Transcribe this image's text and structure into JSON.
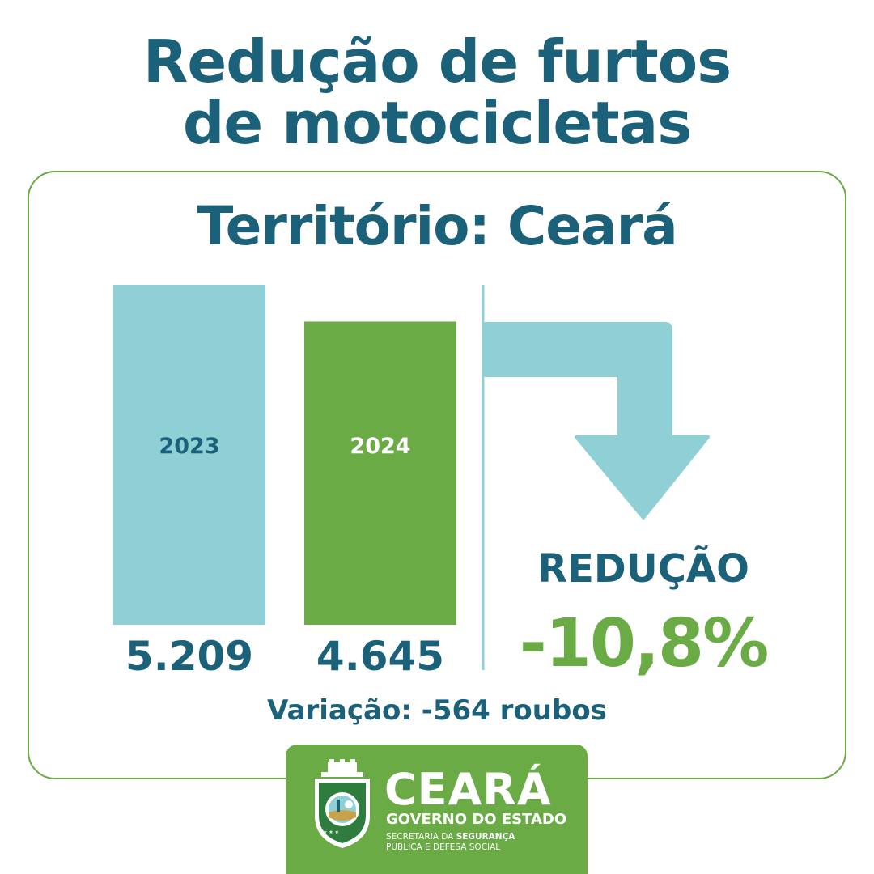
{
  "title_line1": "Redução de furtos",
  "title_line2": "de motocicletas",
  "territory": "Território: Ceará",
  "chart_data": {
    "type": "bar",
    "categories": [
      "2023",
      "2024"
    ],
    "values": [
      5209,
      4645
    ],
    "value_labels": [
      "5.209",
      "4.645"
    ],
    "colors": [
      "#8fd0d6",
      "#6aab45"
    ],
    "category_label_colors": [
      "#1b6179",
      "#ffffff"
    ]
  },
  "reduction": {
    "label": "REDUÇÃO",
    "value": "-10,8%"
  },
  "variation": "Variação: -564 roubos",
  "logo": {
    "name": "CEARÁ",
    "government": "GOVERNO DO ESTADO",
    "secretariat_prefix": "SECRETARIA DA",
    "secretariat_bold": "SEGURANÇA",
    "secretariat_line2": "PÚBLICA E DEFESA SOCIAL"
  },
  "colors": {
    "primary": "#1b6179",
    "green": "#6aab45",
    "light_blue": "#8fd0d6"
  }
}
